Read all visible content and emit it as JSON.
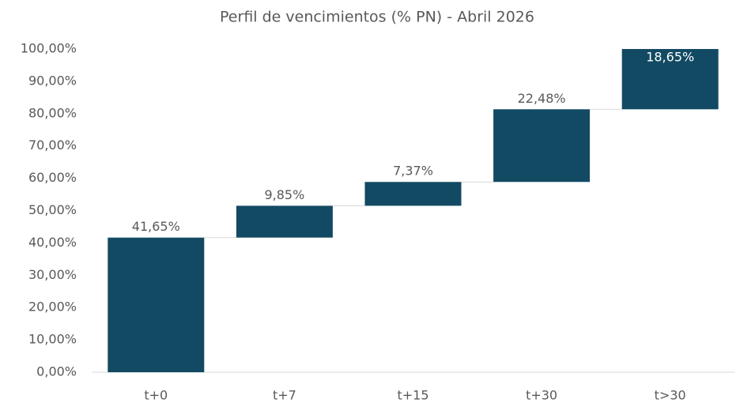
{
  "chart_data": {
    "type": "waterfall",
    "title": "Perfil de vencimientos (% PN) - Abril 2026",
    "categories": [
      "t+0",
      "t+7",
      "t+15",
      "t+30",
      "t>30"
    ],
    "values": [
      41.65,
      9.85,
      7.37,
      22.48,
      18.65
    ],
    "value_labels": [
      "41,65%",
      "9,85%",
      "7,37%",
      "22,48%",
      "18,65%"
    ],
    "color": "#124a63",
    "ylim": [
      0,
      100
    ],
    "yticks": [
      {
        "value": 0,
        "label": "0,00%"
      },
      {
        "value": 10,
        "label": "10,00%"
      },
      {
        "value": 20,
        "label": "20,00%"
      },
      {
        "value": 30,
        "label": "30,00%"
      },
      {
        "value": 40,
        "label": "40,00%"
      },
      {
        "value": 50,
        "label": "50,00%"
      },
      {
        "value": 60,
        "label": "60,00%"
      },
      {
        "value": 70,
        "label": "70,00%"
      },
      {
        "value": 80,
        "label": "80,00%"
      },
      {
        "value": 90,
        "label": "90,00%"
      },
      {
        "value": 100,
        "label": "100,00%"
      }
    ],
    "grid": false
  }
}
